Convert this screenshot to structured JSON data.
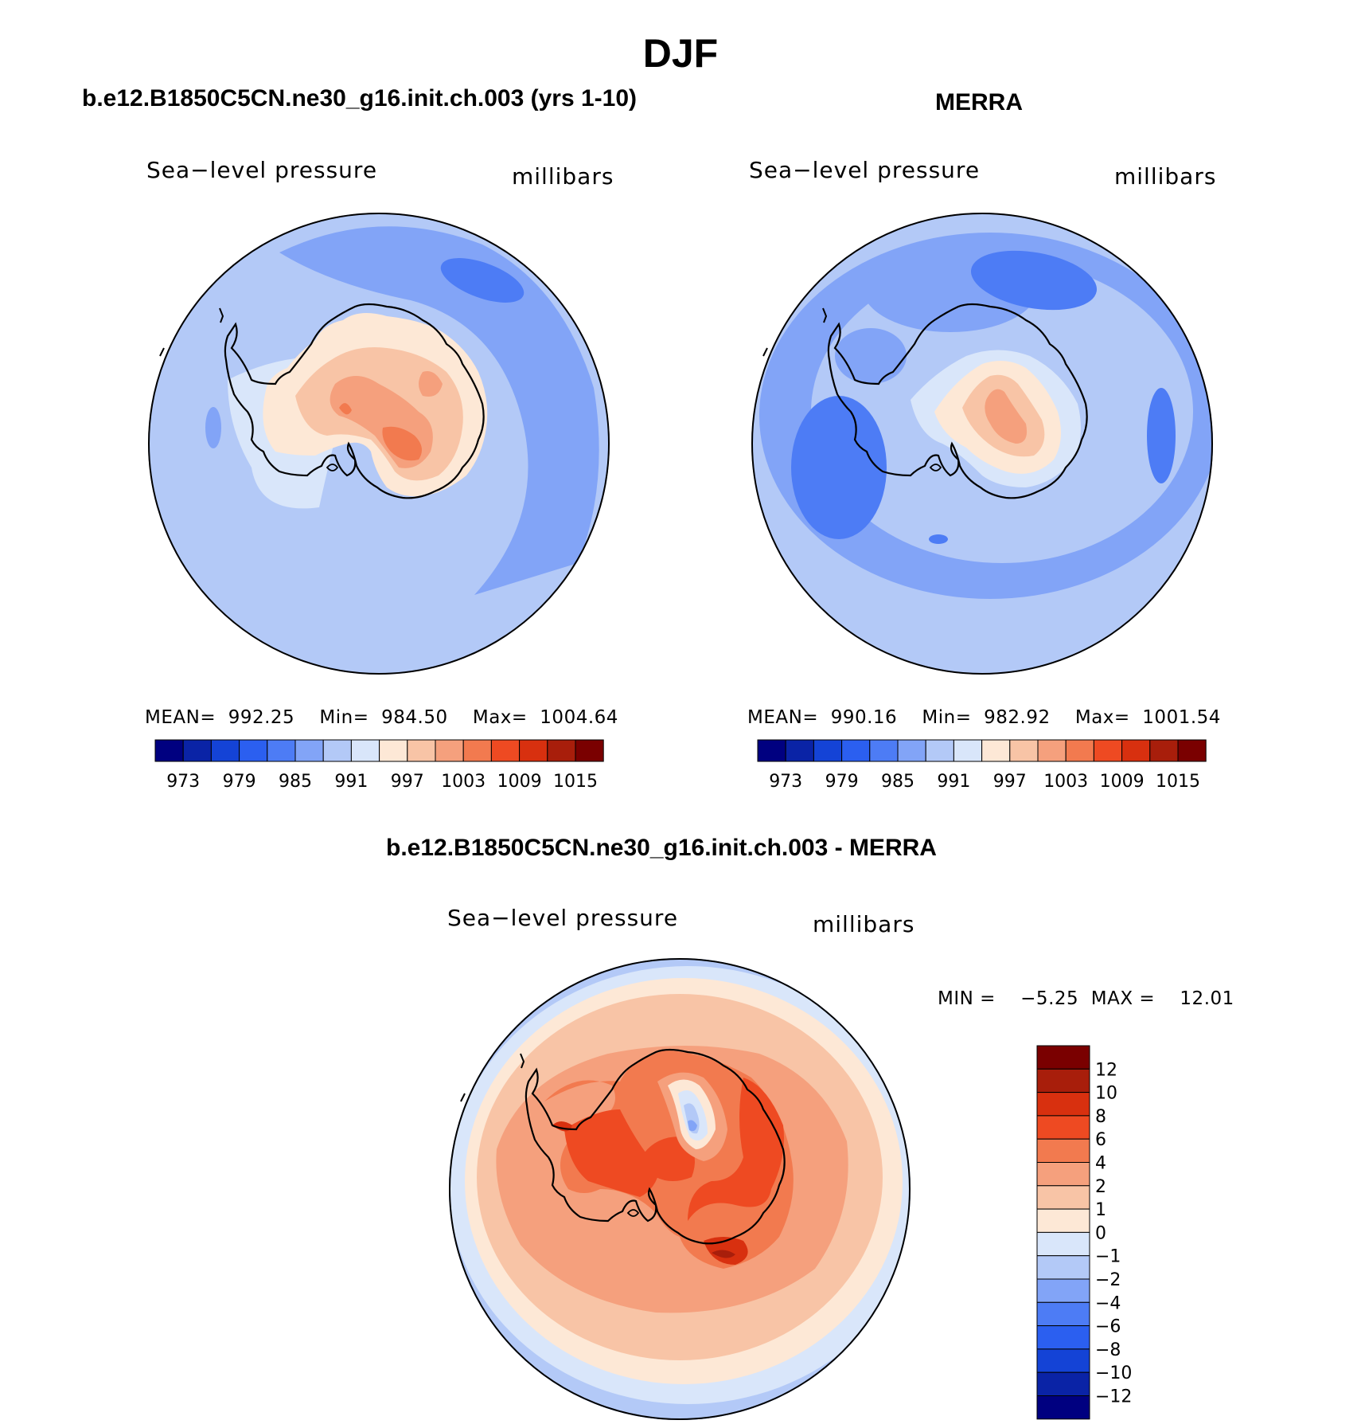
{
  "figure": {
    "title": "DJF",
    "variable": "Sea−level pressure",
    "units": "millibars"
  },
  "panels": {
    "model": {
      "subtitle": "b.e12.B1850C5CN.ne30_g16.init.ch.003 (yrs 1-10)",
      "stats": "MEAN=  992.25    Min=  984.50    Max=  1004.64"
    },
    "obs": {
      "subtitle": "MERRA",
      "stats": "MEAN=  990.16    Min=  982.92    Max=  1001.54"
    },
    "diff": {
      "subtitle": "b.e12.B1850C5CN.ne30_g16.init.ch.003 - MERRA",
      "stats": "MIN =    −5.25  MAX =    12.01"
    }
  },
  "chart_data": [
    {
      "type": "heatmap",
      "projection": "south polar stereographic",
      "title": "b.e12.B1850C5CN.ne30_g16.init.ch.003 (yrs 1-10)",
      "field": "Sea-level pressure",
      "units": "millibars",
      "mean": 992.25,
      "min": 984.5,
      "max": 1004.64,
      "levels": [
        973,
        979,
        985,
        991,
        997,
        1003,
        1009,
        1015
      ],
      "colors": [
        "#000080",
        "#0a23a6",
        "#1443d6",
        "#2b5ff0",
        "#4d7cf5",
        "#82a4f7",
        "#b3c9f7",
        "#d9e6fa",
        "#fde8d6",
        "#f8c4a6",
        "#f5a07d",
        "#f27a4f",
        "#ee4a22",
        "#d8300f",
        "#a81e0b",
        "#7a0000"
      ]
    },
    {
      "type": "heatmap",
      "projection": "south polar stereographic",
      "title": "MERRA",
      "field": "Sea-level pressure",
      "units": "millibars",
      "mean": 990.16,
      "min": 982.92,
      "max": 1001.54,
      "levels": [
        973,
        979,
        985,
        991,
        997,
        1003,
        1009,
        1015
      ],
      "colors": [
        "#000080",
        "#0a23a6",
        "#1443d6",
        "#2b5ff0",
        "#4d7cf5",
        "#82a4f7",
        "#b3c9f7",
        "#d9e6fa",
        "#fde8d6",
        "#f8c4a6",
        "#f5a07d",
        "#f27a4f",
        "#ee4a22",
        "#d8300f",
        "#a81e0b",
        "#7a0000"
      ]
    },
    {
      "type": "heatmap",
      "projection": "south polar stereographic",
      "title": "b.e12.B1850C5CN.ne30_g16.init.ch.003 - MERRA",
      "field": "Sea-level pressure",
      "units": "millibars",
      "min": -5.25,
      "max": 12.01,
      "levels": [
        "12",
        "10",
        "8",
        "6",
        "4",
        "2",
        "1",
        "0",
        "−1",
        "−2",
        "−4",
        "−6",
        "−8",
        "−10",
        "−12"
      ],
      "colors": [
        "#7a0000",
        "#a81e0b",
        "#d8300f",
        "#ee4a22",
        "#f27a4f",
        "#f5a07d",
        "#f8c4a6",
        "#fde8d6",
        "#d9e6fa",
        "#b3c9f7",
        "#82a4f7",
        "#4d7cf5",
        "#2b5ff0",
        "#1443d6",
        "#0a23a6",
        "#000080"
      ]
    }
  ]
}
